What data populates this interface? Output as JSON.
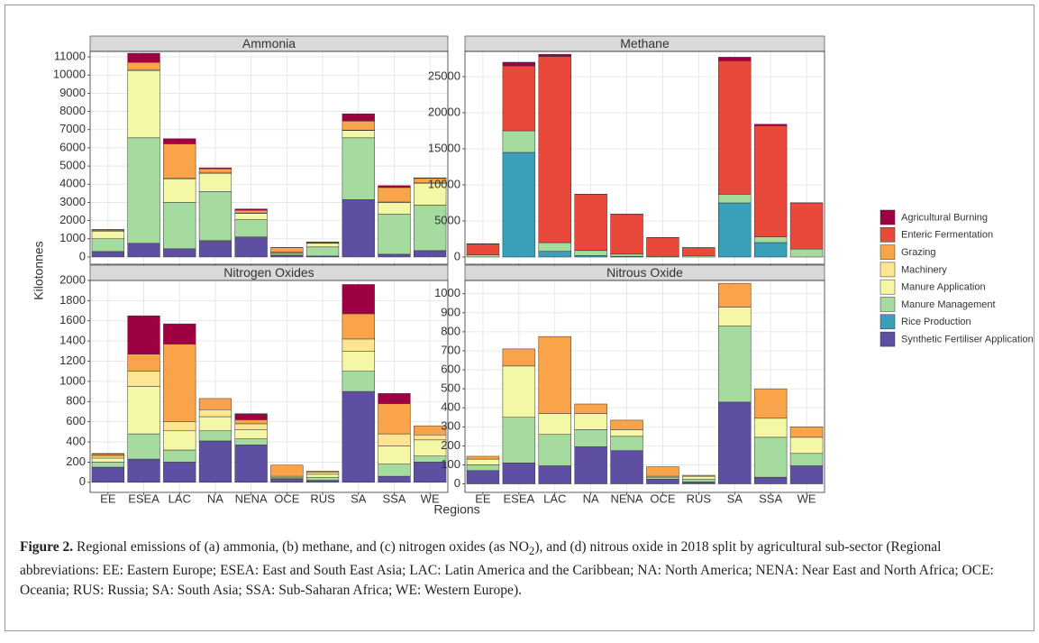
{
  "chart_data": [
    {
      "type": "bar",
      "stacked": true,
      "title": "Ammonia",
      "ylim": [
        -400,
        11300
      ],
      "yticks": [
        0,
        1000,
        2000,
        3000,
        4000,
        5000,
        6000,
        7000,
        8000,
        9000,
        10000,
        11000
      ],
      "grid": true,
      "series": [
        {
          "name": "Agricultural Burning",
          "color": "#9e0142",
          "values": [
            10,
            500,
            280,
            50,
            70,
            10,
            10,
            400,
            100,
            30
          ]
        },
        {
          "name": "Enteric Fermentation",
          "color": "#e8493b",
          "values": [
            0,
            0,
            0,
            0,
            0,
            0,
            0,
            0,
            0,
            0
          ]
        },
        {
          "name": "Grazing",
          "color": "#f9a44a",
          "values": [
            50,
            400,
            1900,
            200,
            150,
            250,
            50,
            500,
            800,
            250
          ]
        },
        {
          "name": "Machinery",
          "color": "#fee591",
          "values": [
            50,
            50,
            20,
            50,
            20,
            10,
            20,
            20,
            20,
            20
          ]
        },
        {
          "name": "Manure Application",
          "color": "#f3f7a6",
          "values": [
            400,
            3700,
            1300,
            1000,
            350,
            50,
            200,
            400,
            650,
            1200
          ]
        },
        {
          "name": "Manure Management",
          "color": "#a6dba0",
          "values": [
            700,
            5800,
            2550,
            2700,
            950,
            100,
            500,
            3400,
            2200,
            2500
          ]
        },
        {
          "name": "Rice Production",
          "color": "#3a9fb8",
          "values": [
            0,
            0,
            0,
            0,
            0,
            0,
            0,
            0,
            0,
            0
          ]
        },
        {
          "name": "Synthetic Fertiliser Application",
          "color": "#5e4fa2",
          "values": [
            300,
            750,
            450,
            900,
            1100,
            100,
            50,
            3150,
            150,
            350
          ]
        }
      ]
    },
    {
      "type": "bar",
      "stacked": true,
      "title": "Methane",
      "ylim": [
        -1000,
        28500
      ],
      "yticks": [
        0,
        5000,
        10000,
        15000,
        20000,
        25000
      ],
      "grid": true,
      "series": [
        {
          "name": "Agricultural Burning",
          "color": "#9e0142",
          "values": [
            50,
            500,
            300,
            20,
            50,
            10,
            10,
            500,
            200,
            20
          ]
        },
        {
          "name": "Enteric Fermentation",
          "color": "#e8493b",
          "values": [
            1500,
            9000,
            25800,
            7800,
            5500,
            2600,
            1100,
            18500,
            15400,
            6400
          ]
        },
        {
          "name": "Grazing",
          "color": "#f9a44a",
          "values": [
            0,
            0,
            0,
            0,
            0,
            0,
            0,
            0,
            0,
            0
          ]
        },
        {
          "name": "Machinery",
          "color": "#fee591",
          "values": [
            0,
            0,
            0,
            0,
            0,
            0,
            0,
            0,
            0,
            0
          ]
        },
        {
          "name": "Manure Application",
          "color": "#f3f7a6",
          "values": [
            0,
            0,
            0,
            0,
            0,
            0,
            0,
            0,
            0,
            0
          ]
        },
        {
          "name": "Manure Management",
          "color": "#a6dba0",
          "values": [
            300,
            3000,
            1200,
            700,
            300,
            100,
            200,
            1200,
            800,
            1100
          ]
        },
        {
          "name": "Rice Production",
          "color": "#3a9fb8",
          "values": [
            0,
            14500,
            800,
            200,
            100,
            0,
            0,
            7500,
            2000,
            0
          ]
        },
        {
          "name": "Synthetic Fertiliser Application",
          "color": "#5e4fa2",
          "values": [
            0,
            0,
            0,
            0,
            0,
            0,
            0,
            0,
            0,
            0
          ]
        }
      ]
    },
    {
      "type": "bar",
      "stacked": true,
      "title": "Nitrogen Oxides",
      "ylim": [
        -100,
        2000
      ],
      "yticks": [
        0,
        200,
        400,
        600,
        800,
        1000,
        1200,
        1400,
        1600,
        1800,
        2000
      ],
      "grid": true,
      "categories": [
        "EE",
        "ESEA",
        "LAC",
        "NA",
        "NENA",
        "OCE",
        "RUS",
        "SA",
        "SSA",
        "WE"
      ],
      "series": [
        {
          "name": "Agricultural Burning",
          "color": "#9e0142",
          "values": [
            5,
            380,
            200,
            0,
            60,
            0,
            0,
            290,
            100,
            0
          ]
        },
        {
          "name": "Enteric Fermentation",
          "color": "#e8493b",
          "values": [
            0,
            0,
            0,
            0,
            0,
            0,
            0,
            0,
            0,
            0
          ]
        },
        {
          "name": "Grazing",
          "color": "#f9a44a",
          "values": [
            20,
            170,
            770,
            110,
            40,
            110,
            10,
            250,
            300,
            90
          ]
        },
        {
          "name": "Machinery",
          "color": "#fee591",
          "values": [
            20,
            150,
            90,
            70,
            60,
            10,
            20,
            120,
            120,
            50
          ]
        },
        {
          "name": "Manure Application",
          "color": "#f3f7a6",
          "values": [
            40,
            470,
            190,
            140,
            90,
            10,
            30,
            200,
            180,
            160
          ]
        },
        {
          "name": "Manure Management",
          "color": "#a6dba0",
          "values": [
            50,
            250,
            120,
            100,
            60,
            10,
            30,
            200,
            120,
            60
          ]
        },
        {
          "name": "Rice Production",
          "color": "#3a9fb8",
          "values": [
            0,
            0,
            0,
            0,
            0,
            0,
            0,
            0,
            0,
            0
          ]
        },
        {
          "name": "Synthetic Fertiliser Application",
          "color": "#5e4fa2",
          "values": [
            150,
            230,
            200,
            410,
            370,
            30,
            20,
            900,
            60,
            200
          ]
        }
      ]
    },
    {
      "type": "bar",
      "stacked": true,
      "title": "Nitrous Oxide",
      "ylim": [
        -45,
        1070
      ],
      "yticks": [
        0,
        100,
        200,
        300,
        400,
        500,
        600,
        700,
        800,
        900,
        1000
      ],
      "grid": true,
      "categories": [
        "EE",
        "ESEA",
        "LAC",
        "NA",
        "NENA",
        "OCE",
        "RUS",
        "SA",
        "SSA",
        "WE"
      ],
      "series": [
        {
          "name": "Agricultural Burning",
          "color": "#9e0142",
          "values": [
            0,
            0,
            0,
            0,
            0,
            0,
            0,
            0,
            0,
            0
          ]
        },
        {
          "name": "Enteric Fermentation",
          "color": "#e8493b",
          "values": [
            0,
            0,
            0,
            0,
            0,
            0,
            0,
            0,
            0,
            0
          ]
        },
        {
          "name": "Grazing",
          "color": "#f9a44a",
          "values": [
            15,
            90,
            405,
            50,
            50,
            50,
            5,
            125,
            155,
            55
          ]
        },
        {
          "name": "Machinery",
          "color": "#fee591",
          "values": [
            0,
            0,
            0,
            0,
            0,
            0,
            0,
            0,
            0,
            0
          ]
        },
        {
          "name": "Manure Application",
          "color": "#f3f7a6",
          "values": [
            30,
            270,
            110,
            85,
            35,
            5,
            15,
            100,
            100,
            85
          ]
        },
        {
          "name": "Manure Management",
          "color": "#a6dba0",
          "values": [
            30,
            240,
            165,
            90,
            75,
            10,
            15,
            400,
            210,
            65
          ]
        },
        {
          "name": "Rice Production",
          "color": "#3a9fb8",
          "values": [
            0,
            0,
            0,
            0,
            0,
            0,
            0,
            0,
            0,
            0
          ]
        },
        {
          "name": "Synthetic Fertiliser Application",
          "color": "#5e4fa2",
          "values": [
            70,
            110,
            95,
            195,
            175,
            25,
            10,
            430,
            35,
            95
          ]
        }
      ]
    }
  ],
  "y_label": "Kilotonnes",
  "x_label": "Regions",
  "caption": {
    "label": "Figure 2.",
    "text_before": "Regional emissions of (a) ammonia, (b) methane, and (c) nitrogen oxides (as NO",
    "subscript": "2",
    "text_after": "), and (d) nitrous oxide in 2018 split by agricultural sub-sector (Regional abbreviations: EE: Eastern Europe; ESEA: East and South East Asia; LAC: Latin America and the Caribbean; NA: North America; NENA: Near East and North Africa; OCE: Oceania; RUS: Russia; SA: South Asia; SSA: Sub-Saharan Africa; WE: Western Europe)."
  }
}
